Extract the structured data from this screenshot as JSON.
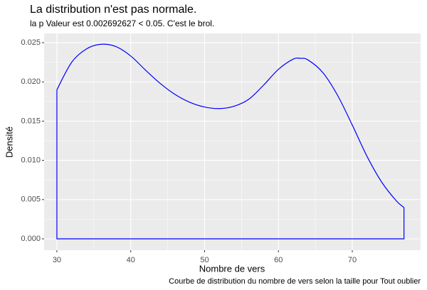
{
  "chart_data": {
    "type": "density",
    "title": "La distribution n'est pas normale.",
    "subtitle": "la p Valeur est  0.002692627  < 0.05. C'est le brol.",
    "x_label": "Nombre de vers",
    "y_label": "Densité",
    "caption": "Courbe de distribution du nombre de vers selon la taille pour  Tout oublier",
    "color": "#0000ff",
    "grid": true,
    "x": [
      30,
      32,
      34,
      36,
      38,
      40,
      42,
      44,
      46,
      48,
      50,
      52,
      54,
      56,
      58,
      60,
      62,
      63,
      64,
      66,
      68,
      70,
      72,
      74,
      76,
      77
    ],
    "values": [
      0.019,
      0.0225,
      0.0242,
      0.0248,
      0.0245,
      0.0233,
      0.0215,
      0.0198,
      0.0184,
      0.0174,
      0.0168,
      0.0166,
      0.0169,
      0.0178,
      0.0196,
      0.0216,
      0.0229,
      0.023,
      0.0228,
      0.0212,
      0.0183,
      0.0145,
      0.0105,
      0.0072,
      0.0048,
      0.004
    ],
    "xlim": [
      28.27,
      79.25
    ],
    "ylim": [
      -0.00145,
      0.02618
    ],
    "xticks": [
      30,
      40,
      50,
      60,
      70
    ],
    "yticks": [
      {
        "value": 0,
        "label": "0.000"
      },
      {
        "value": 0.005,
        "label": "0.005"
      },
      {
        "value": 0.01,
        "label": "0.010"
      },
      {
        "value": 0.015,
        "label": "0.015"
      },
      {
        "value": 0.02,
        "label": "0.020"
      },
      {
        "value": 0.025,
        "label": "0.025"
      }
    ]
  }
}
